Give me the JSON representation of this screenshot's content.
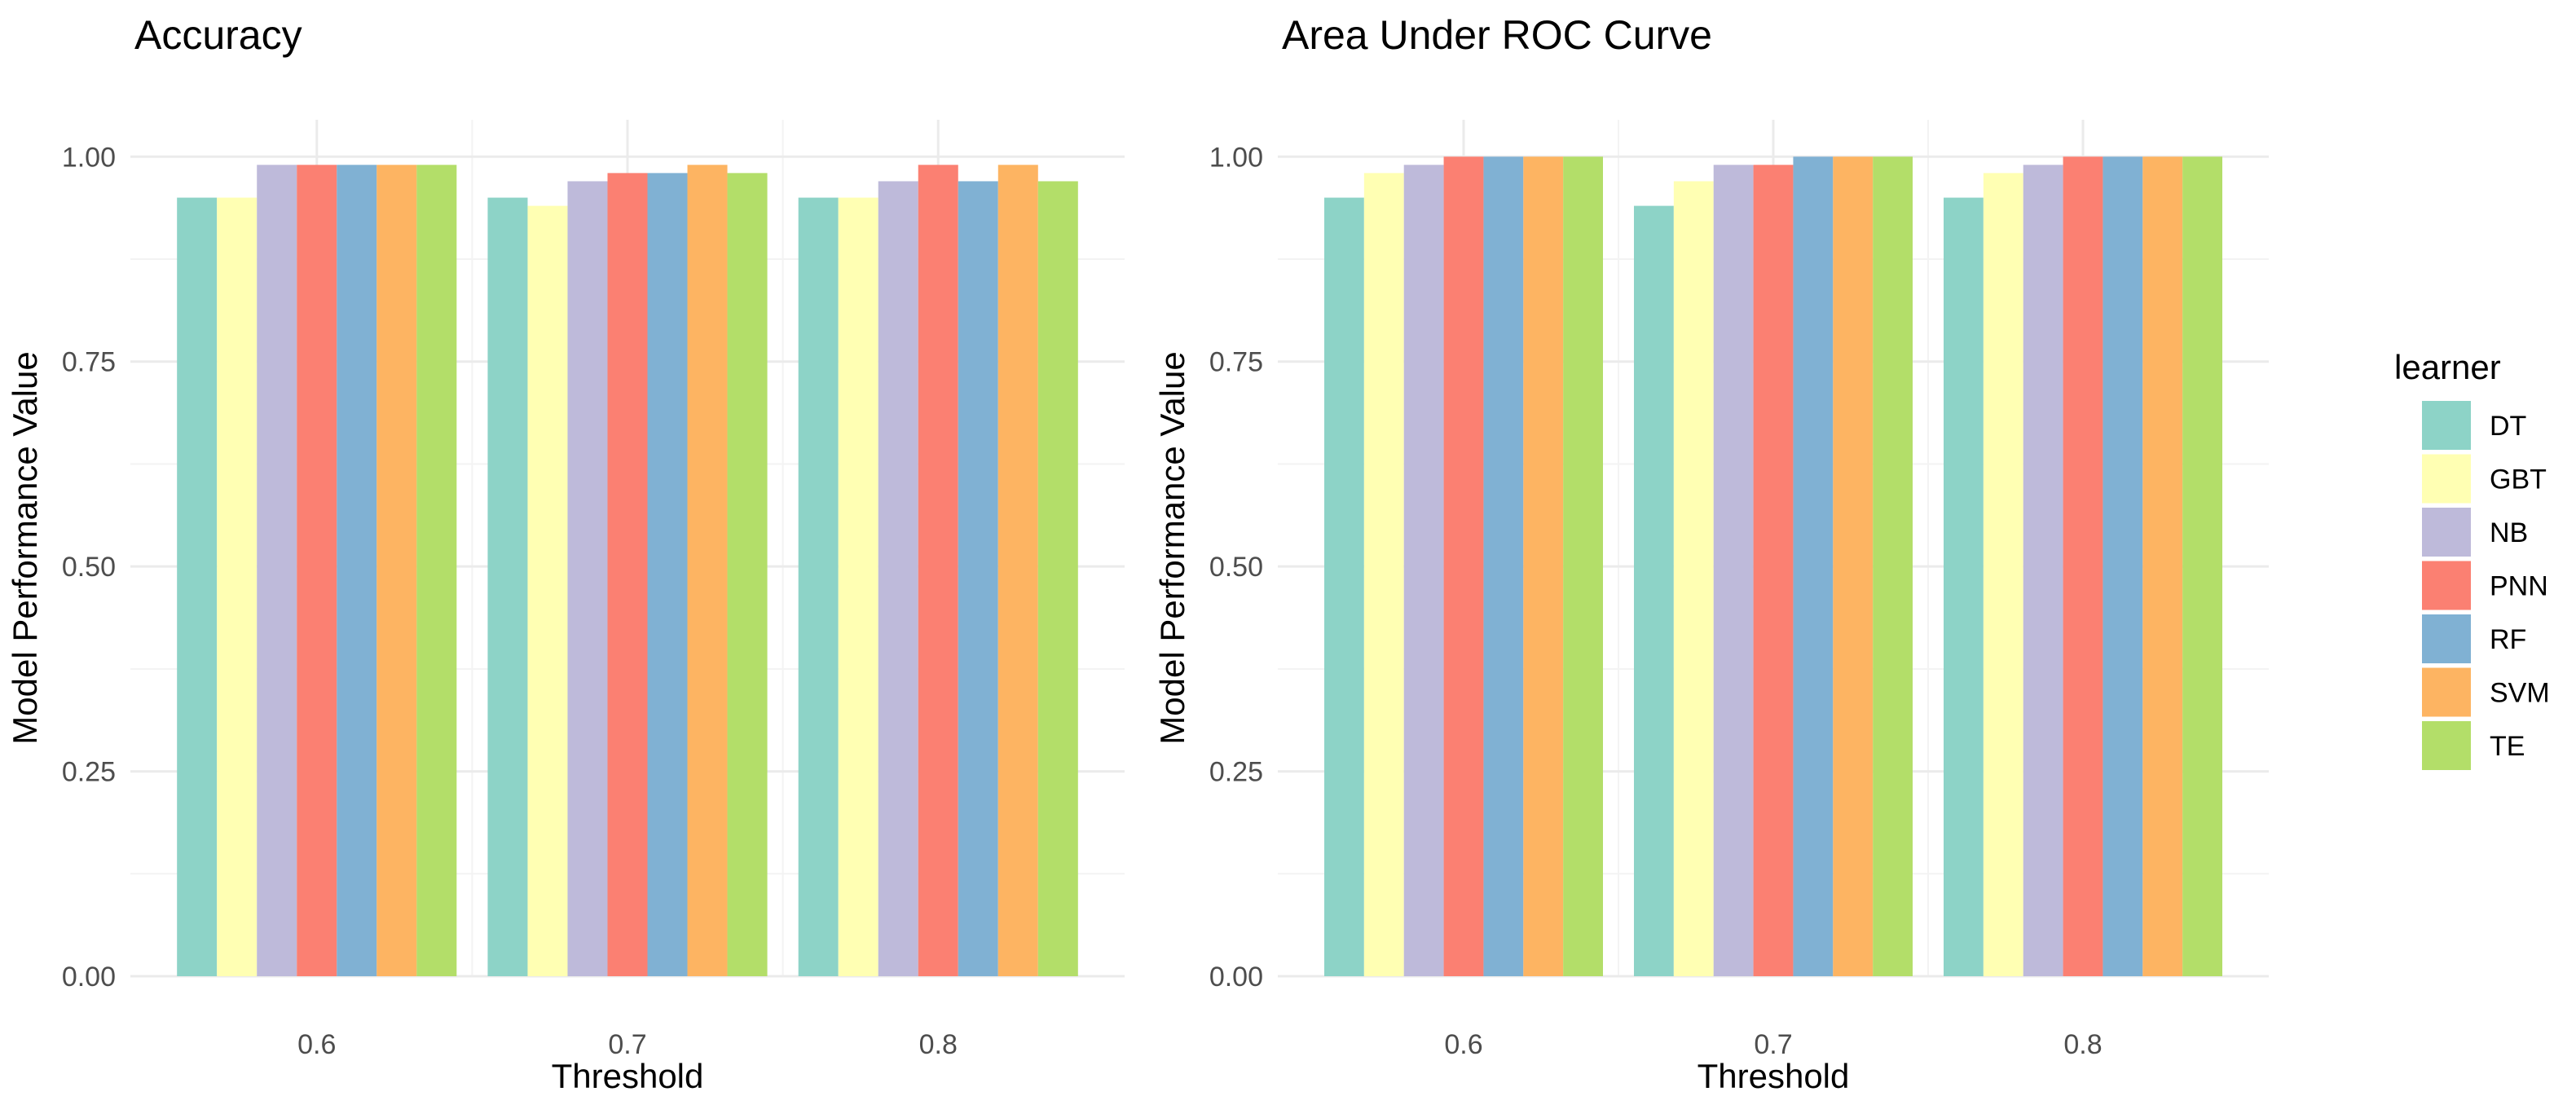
{
  "chart_data": [
    {
      "type": "bar",
      "title": "Accuracy",
      "xlabel": "Threshold",
      "ylabel": "Model Performance Value",
      "categories": [
        "0.6",
        "0.7",
        "0.8"
      ],
      "ylim": [
        0,
        1
      ],
      "yticks": [
        "0.00",
        "0.25",
        "0.50",
        "0.75",
        "1.00"
      ],
      "grid": true,
      "series": [
        {
          "name": "DT",
          "values": [
            0.95,
            0.95,
            0.95
          ]
        },
        {
          "name": "GBT",
          "values": [
            0.95,
            0.94,
            0.95
          ]
        },
        {
          "name": "NB",
          "values": [
            0.99,
            0.97,
            0.97
          ]
        },
        {
          "name": "PNN",
          "values": [
            0.99,
            0.98,
            0.99
          ]
        },
        {
          "name": "RF",
          "values": [
            0.99,
            0.98,
            0.97
          ]
        },
        {
          "name": "SVM",
          "values": [
            0.99,
            0.99,
            0.99
          ]
        },
        {
          "name": "TE",
          "values": [
            0.99,
            0.98,
            0.97
          ]
        }
      ]
    },
    {
      "type": "bar",
      "title": "Area Under ROC Curve",
      "xlabel": "Threshold",
      "ylabel": "Model Performance Value",
      "categories": [
        "0.6",
        "0.7",
        "0.8"
      ],
      "ylim": [
        0,
        1
      ],
      "yticks": [
        "0.00",
        "0.25",
        "0.50",
        "0.75",
        "1.00"
      ],
      "grid": true,
      "series": [
        {
          "name": "DT",
          "values": [
            0.95,
            0.94,
            0.95
          ]
        },
        {
          "name": "GBT",
          "values": [
            0.98,
            0.97,
            0.98
          ]
        },
        {
          "name": "NB",
          "values": [
            0.99,
            0.99,
            0.99
          ]
        },
        {
          "name": "PNN",
          "values": [
            1.0,
            0.99,
            1.0
          ]
        },
        {
          "name": "RF",
          "values": [
            1.0,
            1.0,
            1.0
          ]
        },
        {
          "name": "SVM",
          "values": [
            1.0,
            1.0,
            1.0
          ]
        },
        {
          "name": "TE",
          "values": [
            1.0,
            1.0,
            1.0
          ]
        }
      ]
    }
  ],
  "legend": {
    "title": "learner",
    "position": "right",
    "entries": [
      {
        "name": "DT",
        "color": "#8DD3C7"
      },
      {
        "name": "GBT",
        "color": "#FFFFB3"
      },
      {
        "name": "NB",
        "color": "#BEBADA"
      },
      {
        "name": "PNN",
        "color": "#FB8072"
      },
      {
        "name": "RF",
        "color": "#80B1D3"
      },
      {
        "name": "SVM",
        "color": "#FDB462"
      },
      {
        "name": "TE",
        "color": "#B3DE69"
      }
    ]
  }
}
